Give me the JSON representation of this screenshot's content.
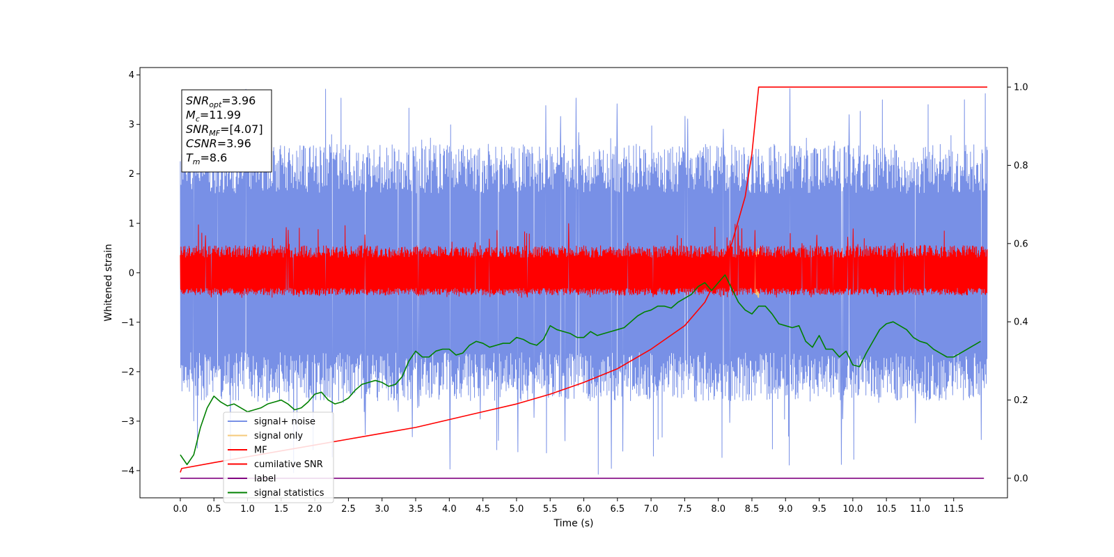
{
  "chart_data": {
    "type": "line",
    "xlabel": "Time (s)",
    "ylabel": "Whitened strain",
    "xlim": [
      -0.6,
      12.3
    ],
    "ylim": [
      -4.55,
      4.15
    ],
    "y2lim": [
      -0.05,
      1.05
    ],
    "x_ticks": [
      0.0,
      0.5,
      1.0,
      1.5,
      2.0,
      2.5,
      3.0,
      3.5,
      4.0,
      4.5,
      5.0,
      5.5,
      6.0,
      6.5,
      7.0,
      7.5,
      8.0,
      8.5,
      9.0,
      9.5,
      10.0,
      10.5,
      11.0,
      11.5
    ],
    "x_tick_labels": [
      "0.0",
      "0.5",
      "1.0",
      "1.5",
      "2.0",
      "2.5",
      "3.0",
      "3.5",
      "4.0",
      "4.5",
      "5.0",
      "5.5",
      "6.0",
      "6.5",
      "7.0",
      "7.5",
      "8.0",
      "8.5",
      "9.0",
      "9.5",
      "10.0",
      "10.5",
      "11.0",
      "11.5"
    ],
    "y_ticks": [
      -4,
      -3,
      -2,
      -1,
      0,
      1,
      2,
      3,
      4
    ],
    "y_tick_labels": [
      "−4",
      "−3",
      "−2",
      "−1",
      "0",
      "1",
      "2",
      "3",
      "4"
    ],
    "y2_ticks": [
      0.0,
      0.2,
      0.4,
      0.6,
      0.8,
      1.0
    ],
    "y2_tick_labels": [
      "0.0",
      "0.2",
      "0.4",
      "0.6",
      "0.8",
      "1.0"
    ],
    "grid": false,
    "legend_position": "bottom-left",
    "info_box": {
      "lines": [
        {
          "name": "SNR",
          "sub": "opt",
          "value": "=3.96"
        },
        {
          "name": "M",
          "sub": "c",
          "value": "=11.99"
        },
        {
          "name": "SNR",
          "sub": "MF",
          "value": "=[4.07]"
        },
        {
          "name": "CSNR",
          "sub": "",
          "value": "=3.96"
        },
        {
          "name": "T",
          "sub": "m",
          "value": "=8.6"
        }
      ]
    },
    "series": [
      {
        "name": "signal+ noise",
        "axis": "left",
        "color": "#7890e6",
        "kind": "noise",
        "x_range": [
          0.0,
          12.0
        ],
        "band_low": [
          -2.6,
          -1.6
        ],
        "band_high": [
          1.6,
          2.6
        ],
        "spike_max": 3.75,
        "spike_min": -4.15
      },
      {
        "name": "signal only",
        "axis": "left",
        "color": "#f5c97a",
        "kind": "chirp",
        "x_range": [
          8.3,
          8.6
        ],
        "amplitude": 0.5
      },
      {
        "name": "MF",
        "axis": "left",
        "color": "#ff0000",
        "kind": "noise",
        "x_range": [
          0.0,
          12.0
        ],
        "band_low": [
          -0.45,
          -0.3
        ],
        "band_high": [
          0.3,
          0.55
        ],
        "spike_max": 1.0,
        "spike_min": -0.5
      },
      {
        "name": "cumilative SNR",
        "axis": "right",
        "color": "#ff0000",
        "x": [
          0.0,
          0.02,
          0.5,
          1.0,
          1.5,
          2.0,
          2.5,
          3.0,
          3.5,
          4.0,
          4.5,
          5.0,
          5.5,
          6.0,
          6.5,
          7.0,
          7.5,
          7.8,
          8.0,
          8.2,
          8.4,
          8.5,
          8.6,
          12.0
        ],
        "values": [
          0.015,
          0.025,
          0.04,
          0.055,
          0.07,
          0.085,
          0.1,
          0.115,
          0.13,
          0.15,
          0.17,
          0.19,
          0.215,
          0.245,
          0.28,
          0.33,
          0.39,
          0.45,
          0.52,
          0.6,
          0.72,
          0.83,
          1.0,
          1.0
        ]
      },
      {
        "name": "label",
        "axis": "right",
        "color": "#800080",
        "x": [
          0.0,
          11.95
        ],
        "values": [
          0.0,
          0.0
        ]
      },
      {
        "name": "signal statistics",
        "axis": "right",
        "color": "#008000",
        "x": [
          0.0,
          0.1,
          0.2,
          0.3,
          0.4,
          0.5,
          0.6,
          0.7,
          0.8,
          0.9,
          1.0,
          1.1,
          1.2,
          1.3,
          1.4,
          1.5,
          1.6,
          1.7,
          1.8,
          1.9,
          2.0,
          2.1,
          2.2,
          2.3,
          2.4,
          2.5,
          2.6,
          2.7,
          2.8,
          2.9,
          3.0,
          3.1,
          3.2,
          3.3,
          3.4,
          3.5,
          3.6,
          3.7,
          3.8,
          3.9,
          4.0,
          4.1,
          4.2,
          4.3,
          4.4,
          4.5,
          4.6,
          4.7,
          4.8,
          4.9,
          5.0,
          5.1,
          5.2,
          5.3,
          5.4,
          5.5,
          5.6,
          5.7,
          5.8,
          5.9,
          6.0,
          6.1,
          6.2,
          6.3,
          6.4,
          6.5,
          6.6,
          6.7,
          6.8,
          6.9,
          7.0,
          7.1,
          7.2,
          7.3,
          7.4,
          7.5,
          7.6,
          7.7,
          7.8,
          7.9,
          8.0,
          8.1,
          8.2,
          8.3,
          8.4,
          8.5,
          8.6,
          8.7,
          8.8,
          8.9,
          9.0,
          9.1,
          9.2,
          9.3,
          9.4,
          9.5,
          9.6,
          9.7,
          9.8,
          9.9,
          10.0,
          10.1,
          10.2,
          10.3,
          10.4,
          10.5,
          10.6,
          10.7,
          10.8,
          10.9,
          11.0,
          11.1,
          11.2,
          11.3,
          11.4,
          11.5,
          11.6,
          11.7,
          11.8,
          11.9
        ],
        "values": [
          0.06,
          0.035,
          0.06,
          0.13,
          0.18,
          0.21,
          0.195,
          0.185,
          0.19,
          0.18,
          0.17,
          0.175,
          0.18,
          0.19,
          0.195,
          0.2,
          0.19,
          0.175,
          0.18,
          0.195,
          0.215,
          0.22,
          0.2,
          0.19,
          0.195,
          0.205,
          0.225,
          0.24,
          0.245,
          0.25,
          0.245,
          0.235,
          0.24,
          0.26,
          0.3,
          0.325,
          0.31,
          0.31,
          0.325,
          0.33,
          0.33,
          0.315,
          0.32,
          0.34,
          0.35,
          0.345,
          0.335,
          0.34,
          0.345,
          0.345,
          0.36,
          0.355,
          0.345,
          0.34,
          0.355,
          0.39,
          0.38,
          0.375,
          0.37,
          0.36,
          0.36,
          0.375,
          0.365,
          0.37,
          0.375,
          0.38,
          0.385,
          0.4,
          0.415,
          0.425,
          0.43,
          0.44,
          0.44,
          0.435,
          0.45,
          0.46,
          0.47,
          0.49,
          0.5,
          0.48,
          0.5,
          0.52,
          0.485,
          0.45,
          0.43,
          0.42,
          0.44,
          0.44,
          0.42,
          0.395,
          0.39,
          0.385,
          0.39,
          0.35,
          0.335,
          0.365,
          0.33,
          0.33,
          0.31,
          0.325,
          0.29,
          0.285,
          0.32,
          0.35,
          0.38,
          0.395,
          0.4,
          0.39,
          0.38,
          0.36,
          0.35,
          0.345,
          0.33,
          0.32,
          0.31,
          0.31,
          0.32,
          0.33,
          0.34,
          0.35
        ]
      }
    ]
  }
}
